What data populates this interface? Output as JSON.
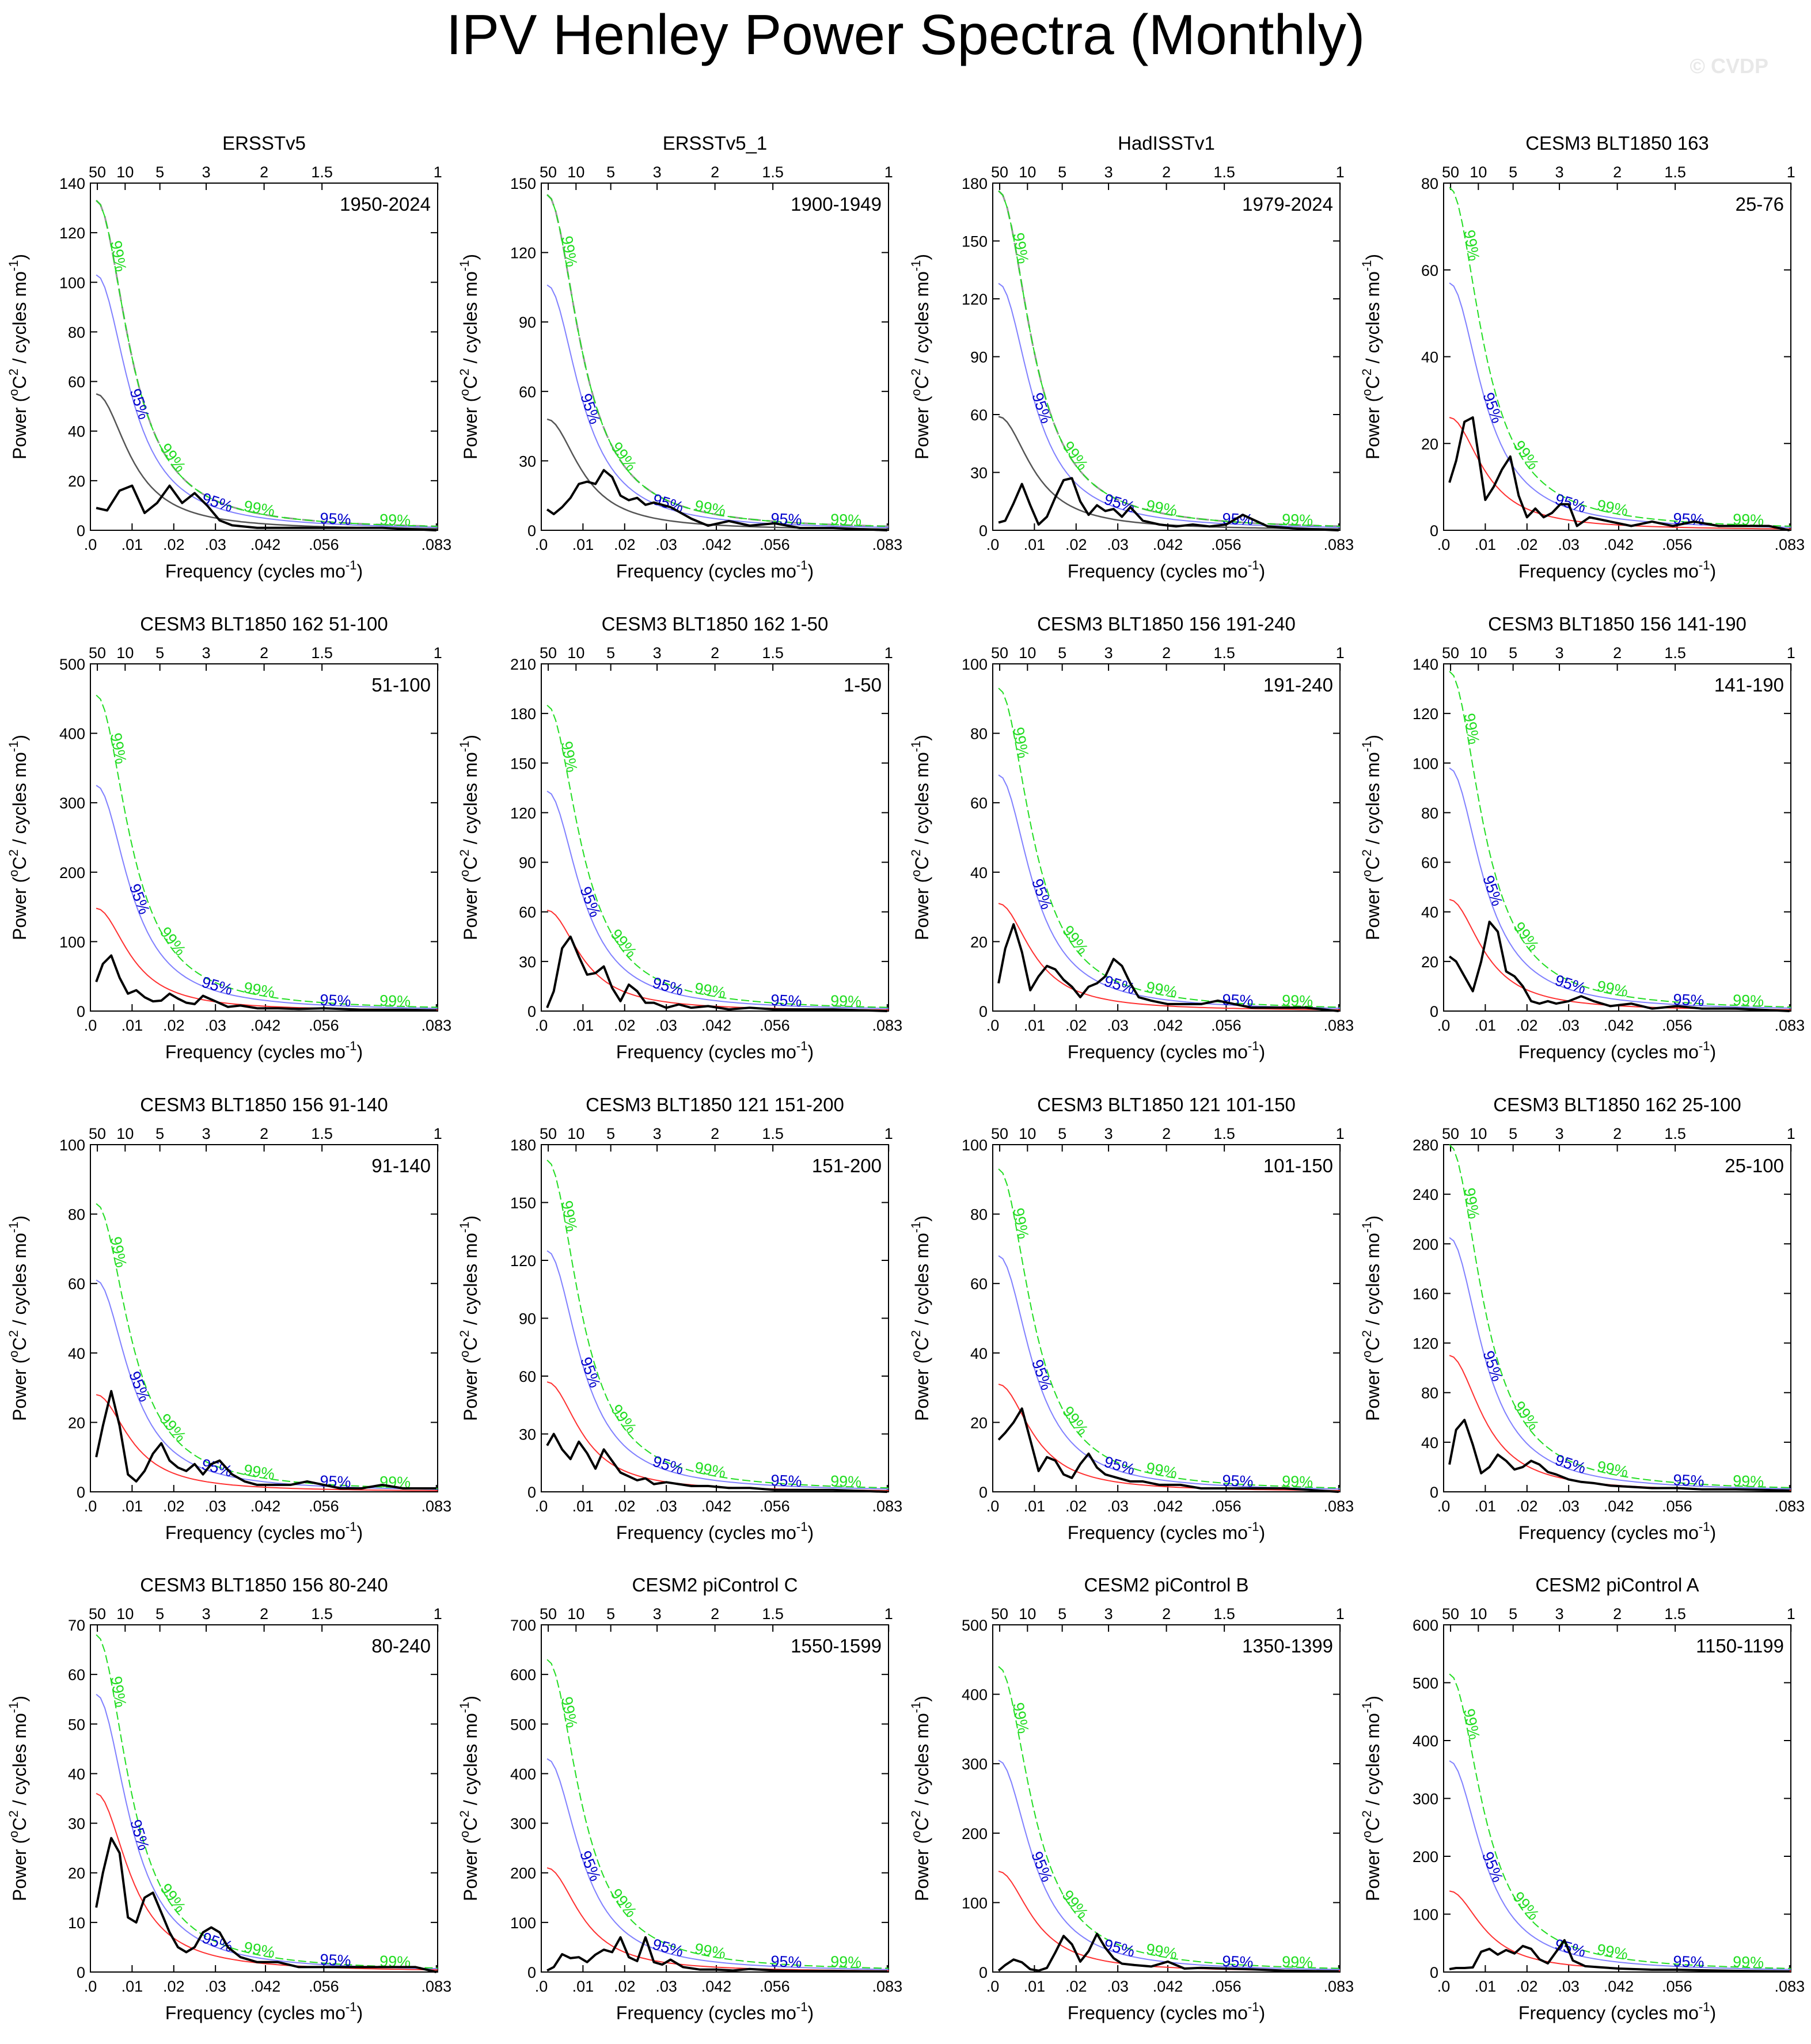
{
  "title": "IPV Henley Power Spectra (Monthly)",
  "credit": "© CVDP",
  "colors": {
    "spectrum": "#000000",
    "red_noise": "#ff3030",
    "ci95": "#0000cc",
    "ci95_line": "#8080ff",
    "ci99": "#22dd22",
    "obs_ci": "#999999"
  },
  "axis_labels": {
    "xlabel": "Frequency (cycles mo",
    "xlabel_sup": "-1",
    "xlabel_end": ")",
    "ylabel_a": "Power (",
    "ylabel_o": "o",
    "ylabel_b": "C",
    "ylabel_sq": "2",
    "ylabel_c": " / cycles mo",
    "ylabel_sup": "-1",
    "ylabel_end": ")"
  },
  "ci_labels": {
    "ci95": "95%",
    "ci99": "99%"
  },
  "x_ticks": [
    {
      "value": 0.0,
      "label": ".0"
    },
    {
      "value": 0.01,
      "label": ".01"
    },
    {
      "value": 0.02,
      "label": ".02"
    },
    {
      "value": 0.03,
      "label": ".03"
    },
    {
      "value": 0.042,
      "label": ".042"
    },
    {
      "value": 0.056,
      "label": ".056"
    },
    {
      "value": 0.083,
      "label": ".083"
    }
  ],
  "period_ticks": [
    {
      "years": 50,
      "label": "50"
    },
    {
      "years": 10,
      "label": "10"
    },
    {
      "years": 5,
      "label": "5"
    },
    {
      "years": 3,
      "label": "3"
    },
    {
      "years": 2,
      "label": "2"
    },
    {
      "years": 1.5,
      "label": "1.5"
    },
    {
      "years": 1,
      "label": "1"
    }
  ],
  "chart_data": [
    {
      "type": "line",
      "title": "ERSSTv5",
      "years": "1950-2024",
      "ylim": [
        0,
        140
      ],
      "yticks": [
        0,
        20,
        40,
        60,
        80,
        100,
        120,
        140
      ],
      "red_noise_peak": 55,
      "ci95_peak": 103,
      "ci99_peak": 133,
      "obs_ci": true,
      "x": [
        0.0014,
        0.004,
        0.007,
        0.01,
        0.013,
        0.016,
        0.019,
        0.022,
        0.025,
        0.028,
        0.031,
        0.034,
        0.04,
        0.05,
        0.06,
        0.07,
        0.083
      ],
      "y": [
        9,
        8,
        16,
        18,
        7,
        11,
        18,
        11,
        15,
        10,
        4,
        2,
        1,
        1,
        1,
        1,
        0
      ]
    },
    {
      "type": "line",
      "title": "ERSSTv5_1",
      "years": "1900-1949",
      "ylim": [
        0,
        150
      ],
      "yticks": [
        0,
        30,
        60,
        90,
        120,
        150
      ],
      "red_noise_peak": 48,
      "ci95_peak": 106,
      "ci99_peak": 145,
      "obs_ci": true,
      "x": [
        0.0014,
        0.003,
        0.005,
        0.007,
        0.009,
        0.011,
        0.013,
        0.015,
        0.017,
        0.019,
        0.021,
        0.023,
        0.025,
        0.027,
        0.029,
        0.031,
        0.033,
        0.036,
        0.04,
        0.045,
        0.05,
        0.056,
        0.062,
        0.07,
        0.083
      ],
      "y": [
        9,
        7,
        10,
        14,
        20,
        21,
        20,
        26,
        23,
        15,
        13,
        14,
        11,
        12,
        11,
        10,
        8,
        5,
        2,
        4,
        2,
        3,
        1,
        1,
        0
      ]
    },
    {
      "type": "line",
      "title": "HadISSTv1",
      "years": "1979-2024",
      "ylim": [
        0,
        180
      ],
      "yticks": [
        0,
        30,
        60,
        90,
        120,
        150,
        180
      ],
      "red_noise_peak": 59,
      "ci95_peak": 128,
      "ci99_peak": 176,
      "obs_ci": true,
      "x": [
        0.0014,
        0.003,
        0.005,
        0.007,
        0.009,
        0.011,
        0.013,
        0.015,
        0.017,
        0.019,
        0.021,
        0.023,
        0.025,
        0.027,
        0.029,
        0.031,
        0.033,
        0.036,
        0.04,
        0.044,
        0.048,
        0.052,
        0.056,
        0.06,
        0.066,
        0.072,
        0.083
      ],
      "y": [
        4,
        5,
        14,
        24,
        13,
        3,
        7,
        17,
        26,
        27,
        15,
        8,
        13,
        10,
        11,
        7,
        12,
        5,
        3,
        2,
        3,
        2,
        3,
        8,
        2,
        1,
        0
      ]
    },
    {
      "type": "line",
      "title": "CESM3 BLT1850 163",
      "years": "25-76",
      "ylim": [
        0,
        80
      ],
      "yticks": [
        0,
        20,
        40,
        60,
        80
      ],
      "red_noise_peak": 26,
      "ci95_peak": 57,
      "ci99_peak": 79,
      "x": [
        0.0014,
        0.003,
        0.005,
        0.007,
        0.01,
        0.012,
        0.014,
        0.016,
        0.018,
        0.02,
        0.022,
        0.024,
        0.026,
        0.028,
        0.03,
        0.032,
        0.035,
        0.04,
        0.045,
        0.05,
        0.055,
        0.06,
        0.066,
        0.072,
        0.078,
        0.083
      ],
      "y": [
        11,
        16,
        25,
        26,
        7,
        10,
        14,
        17,
        8,
        3,
        5,
        3,
        4,
        6,
        6,
        1,
        3,
        2,
        1,
        2,
        1,
        2,
        1,
        1,
        1,
        0
      ]
    },
    {
      "type": "line",
      "title": "CESM3 BLT1850 162 51-100",
      "years": "51-100",
      "ylim": [
        0,
        500
      ],
      "yticks": [
        0,
        100,
        200,
        300,
        400,
        500
      ],
      "red_noise_peak": 148,
      "ci95_peak": 325,
      "ci99_peak": 455,
      "x": [
        0.0014,
        0.003,
        0.005,
        0.007,
        0.009,
        0.011,
        0.013,
        0.015,
        0.017,
        0.019,
        0.021,
        0.023,
        0.025,
        0.027,
        0.03,
        0.033,
        0.036,
        0.04,
        0.045,
        0.05,
        0.056,
        0.065,
        0.075,
        0.083
      ],
      "y": [
        42,
        68,
        80,
        48,
        25,
        30,
        20,
        14,
        15,
        25,
        18,
        12,
        10,
        22,
        14,
        6,
        8,
        4,
        4,
        3,
        4,
        2,
        2,
        1
      ]
    },
    {
      "type": "line",
      "title": "CESM3 BLT1850 162 1-50",
      "years": "1-50",
      "ylim": [
        0,
        210
      ],
      "yticks": [
        0,
        30,
        60,
        90,
        120,
        150,
        180,
        210
      ],
      "red_noise_peak": 61,
      "ci95_peak": 133,
      "ci99_peak": 185,
      "x": [
        0.0014,
        0.003,
        0.005,
        0.007,
        0.009,
        0.011,
        0.013,
        0.015,
        0.017,
        0.019,
        0.021,
        0.023,
        0.025,
        0.027,
        0.03,
        0.033,
        0.036,
        0.04,
        0.045,
        0.05,
        0.056,
        0.062,
        0.07,
        0.083
      ],
      "y": [
        2,
        12,
        38,
        45,
        33,
        22,
        23,
        27,
        14,
        6,
        16,
        12,
        5,
        5,
        2,
        4,
        2,
        3,
        1,
        2,
        1,
        1,
        1,
        0
      ]
    },
    {
      "type": "line",
      "title": "CESM3 BLT1850 156 191-240",
      "years": "191-240",
      "ylim": [
        0,
        100
      ],
      "yticks": [
        0,
        20,
        40,
        60,
        80,
        100
      ],
      "red_noise_peak": 31,
      "ci95_peak": 68,
      "ci99_peak": 93,
      "x": [
        0.0014,
        0.003,
        0.005,
        0.007,
        0.009,
        0.011,
        0.013,
        0.015,
        0.017,
        0.019,
        0.021,
        0.023,
        0.025,
        0.027,
        0.029,
        0.031,
        0.033,
        0.035,
        0.038,
        0.042,
        0.046,
        0.05,
        0.054,
        0.058,
        0.062,
        0.068,
        0.075,
        0.083
      ],
      "y": [
        8,
        18,
        25,
        17,
        6,
        10,
        13,
        12,
        9,
        7,
        4,
        7,
        8,
        10,
        15,
        13,
        8,
        4,
        3,
        2,
        2,
        2,
        3,
        2,
        1,
        1,
        1,
        0
      ]
    },
    {
      "type": "line",
      "title": "CESM3 BLT1850 156 141-190",
      "years": "141-190",
      "ylim": [
        0,
        140
      ],
      "yticks": [
        0,
        20,
        40,
        60,
        80,
        100,
        120,
        140
      ],
      "red_noise_peak": 45,
      "ci95_peak": 98,
      "ci99_peak": 137,
      "x": [
        0.0014,
        0.003,
        0.005,
        0.007,
        0.009,
        0.011,
        0.013,
        0.015,
        0.017,
        0.019,
        0.021,
        0.023,
        0.025,
        0.027,
        0.03,
        0.033,
        0.036,
        0.04,
        0.045,
        0.05,
        0.056,
        0.062,
        0.07,
        0.083
      ],
      "y": [
        22,
        20,
        14,
        8,
        20,
        36,
        32,
        16,
        14,
        10,
        4,
        3,
        4,
        3,
        4,
        6,
        4,
        2,
        3,
        1,
        2,
        1,
        1,
        0
      ]
    },
    {
      "type": "line",
      "title": "CESM3 BLT1850 156 91-140",
      "years": "91-140",
      "ylim": [
        0,
        100
      ],
      "yticks": [
        0,
        20,
        40,
        60,
        80,
        100
      ],
      "red_noise_peak": 28,
      "ci95_peak": 61,
      "ci99_peak": 83,
      "x": [
        0.0014,
        0.003,
        0.005,
        0.007,
        0.009,
        0.011,
        0.013,
        0.015,
        0.017,
        0.019,
        0.021,
        0.023,
        0.025,
        0.027,
        0.029,
        0.031,
        0.034,
        0.037,
        0.04,
        0.044,
        0.048,
        0.052,
        0.056,
        0.06,
        0.065,
        0.07,
        0.075,
        0.083
      ],
      "y": [
        10,
        19,
        29,
        19,
        5,
        3,
        6,
        11,
        14,
        9,
        7,
        6,
        8,
        5,
        8,
        9,
        5,
        3,
        2,
        2,
        2,
        3,
        2,
        1,
        1,
        2,
        1,
        1
      ]
    },
    {
      "type": "line",
      "title": "CESM3 BLT1850 121 151-200",
      "years": "151-200",
      "ylim": [
        0,
        180
      ],
      "yticks": [
        0,
        30,
        60,
        90,
        120,
        150,
        180
      ],
      "red_noise_peak": 57,
      "ci95_peak": 125,
      "ci99_peak": 172,
      "x": [
        0.0014,
        0.003,
        0.005,
        0.007,
        0.009,
        0.011,
        0.013,
        0.015,
        0.017,
        0.019,
        0.021,
        0.023,
        0.025,
        0.027,
        0.03,
        0.033,
        0.036,
        0.04,
        0.045,
        0.05,
        0.056,
        0.062,
        0.07,
        0.083
      ],
      "y": [
        24,
        30,
        22,
        17,
        26,
        20,
        12,
        22,
        16,
        10,
        8,
        6,
        7,
        4,
        5,
        4,
        3,
        3,
        2,
        2,
        1,
        1,
        1,
        0
      ]
    },
    {
      "type": "line",
      "title": "CESM3 BLT1850 121 101-150",
      "years": "101-150",
      "ylim": [
        0,
        100
      ],
      "yticks": [
        0,
        20,
        40,
        60,
        80,
        100
      ],
      "red_noise_peak": 31,
      "ci95_peak": 68,
      "ci99_peak": 93,
      "x": [
        0.0014,
        0.003,
        0.005,
        0.007,
        0.009,
        0.011,
        0.013,
        0.015,
        0.017,
        0.019,
        0.021,
        0.023,
        0.025,
        0.027,
        0.03,
        0.033,
        0.036,
        0.04,
        0.045,
        0.05,
        0.056,
        0.062,
        0.07,
        0.083
      ],
      "y": [
        15,
        17,
        20,
        24,
        15,
        6,
        10,
        9,
        5,
        4,
        8,
        11,
        7,
        5,
        4,
        3,
        3,
        2,
        2,
        1,
        1,
        1,
        1,
        0
      ]
    },
    {
      "type": "line",
      "title": "CESM3 BLT1850 162 25-100",
      "years": "25-100",
      "ylim": [
        0,
        280
      ],
      "yticks": [
        0,
        40,
        80,
        120,
        160,
        200,
        240,
        280
      ],
      "red_noise_peak": 110,
      "ci95_peak": 205,
      "ci99_peak": 280,
      "x": [
        0.0014,
        0.003,
        0.005,
        0.007,
        0.009,
        0.011,
        0.013,
        0.015,
        0.017,
        0.019,
        0.021,
        0.023,
        0.025,
        0.027,
        0.03,
        0.033,
        0.036,
        0.04,
        0.045,
        0.05,
        0.056,
        0.062,
        0.07,
        0.083
      ],
      "y": [
        22,
        50,
        58,
        38,
        15,
        20,
        30,
        25,
        18,
        20,
        25,
        22,
        16,
        14,
        10,
        8,
        7,
        5,
        4,
        3,
        3,
        2,
        2,
        1
      ]
    },
    {
      "type": "line",
      "title": "CESM3 BLT1850 156 80-240",
      "years": "80-240",
      "ylim": [
        0,
        70
      ],
      "yticks": [
        0,
        10,
        20,
        30,
        40,
        50,
        60,
        70
      ],
      "red_noise_peak": 36,
      "ci95_peak": 56,
      "ci99_peak": 68,
      "x": [
        0.0014,
        0.003,
        0.005,
        0.007,
        0.009,
        0.011,
        0.013,
        0.015,
        0.017,
        0.019,
        0.021,
        0.023,
        0.025,
        0.027,
        0.029,
        0.031,
        0.033,
        0.036,
        0.04,
        0.045,
        0.05,
        0.056,
        0.062,
        0.07,
        0.078,
        0.083
      ],
      "y": [
        13,
        20,
        27,
        24,
        11,
        10,
        15,
        16,
        12,
        8,
        5,
        4,
        5,
        8,
        9,
        8,
        5,
        3,
        2,
        2,
        1,
        1,
        1,
        1,
        1,
        0
      ]
    },
    {
      "type": "line",
      "title": "CESM2 piControl C",
      "years": "1550-1599",
      "ylim": [
        0,
        700
      ],
      "yticks": [
        0,
        100,
        200,
        300,
        400,
        500,
        600,
        700
      ],
      "red_noise_peak": 210,
      "ci95_peak": 430,
      "ci99_peak": 630,
      "x": [
        0.0014,
        0.003,
        0.005,
        0.007,
        0.009,
        0.011,
        0.013,
        0.015,
        0.017,
        0.019,
        0.021,
        0.023,
        0.025,
        0.027,
        0.029,
        0.031,
        0.034,
        0.038,
        0.042,
        0.046,
        0.05,
        0.056,
        0.062,
        0.07,
        0.083
      ],
      "y": [
        3,
        10,
        36,
        28,
        30,
        20,
        35,
        45,
        40,
        70,
        30,
        22,
        70,
        20,
        15,
        25,
        10,
        5,
        5,
        3,
        6,
        3,
        2,
        2,
        1
      ]
    },
    {
      "type": "line",
      "title": "CESM2 piControl B",
      "years": "1350-1399",
      "ylim": [
        0,
        500
      ],
      "yticks": [
        0,
        100,
        200,
        300,
        400,
        500
      ],
      "red_noise_peak": 145,
      "ci95_peak": 305,
      "ci99_peak": 440,
      "x": [
        0.0014,
        0.003,
        0.005,
        0.007,
        0.009,
        0.011,
        0.013,
        0.015,
        0.017,
        0.019,
        0.021,
        0.023,
        0.025,
        0.027,
        0.029,
        0.031,
        0.034,
        0.038,
        0.042,
        0.046,
        0.05,
        0.056,
        0.062,
        0.07,
        0.083
      ],
      "y": [
        2,
        10,
        18,
        14,
        4,
        2,
        6,
        28,
        52,
        40,
        15,
        30,
        55,
        35,
        20,
        12,
        10,
        8,
        15,
        5,
        6,
        5,
        4,
        2,
        1
      ]
    },
    {
      "type": "line",
      "title": "CESM2 piControl A",
      "years": "1150-1199",
      "ylim": [
        0,
        600
      ],
      "yticks": [
        0,
        100,
        200,
        300,
        400,
        500,
        600
      ],
      "red_noise_peak": 140,
      "ci95_peak": 365,
      "ci99_peak": 515,
      "x": [
        0.0014,
        0.003,
        0.005,
        0.007,
        0.009,
        0.011,
        0.013,
        0.015,
        0.017,
        0.019,
        0.021,
        0.023,
        0.025,
        0.027,
        0.029,
        0.031,
        0.034,
        0.038,
        0.042,
        0.046,
        0.05,
        0.056,
        0.062,
        0.07,
        0.083
      ],
      "y": [
        5,
        7,
        7,
        8,
        35,
        40,
        30,
        38,
        32,
        45,
        40,
        22,
        15,
        35,
        55,
        20,
        10,
        8,
        6,
        5,
        4,
        4,
        3,
        2,
        1
      ]
    }
  ]
}
